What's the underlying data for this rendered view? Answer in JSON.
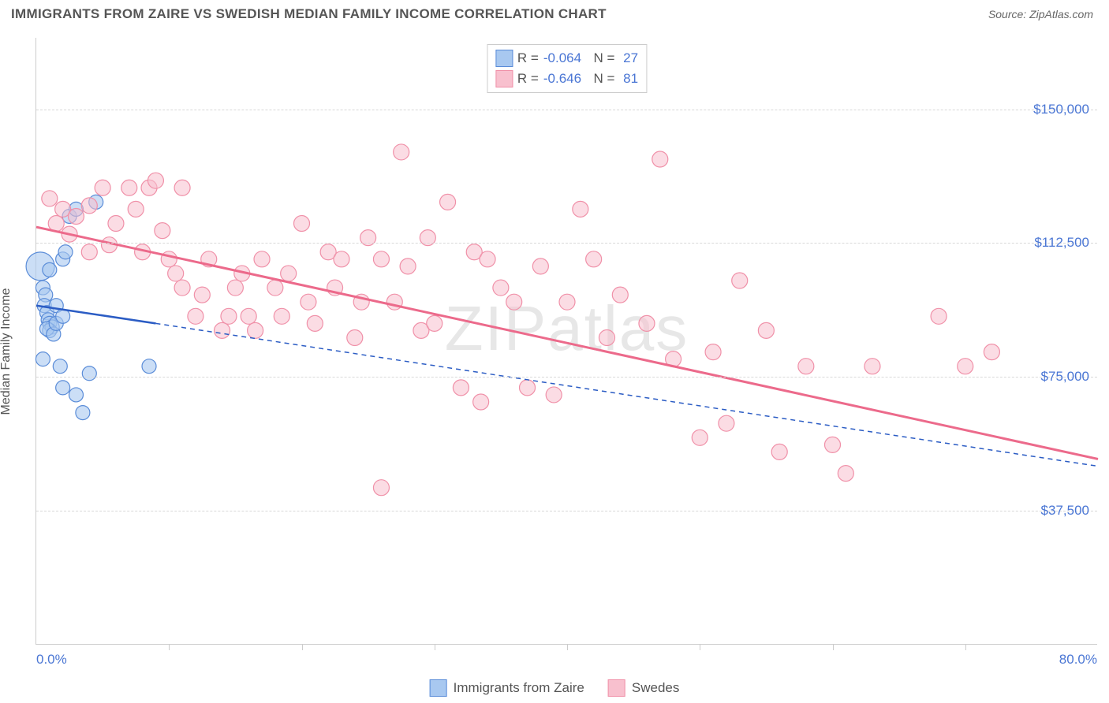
{
  "header": {
    "title": "IMMIGRANTS FROM ZAIRE VS SWEDISH MEDIAN FAMILY INCOME CORRELATION CHART",
    "source": "Source: ZipAtlas.com"
  },
  "chart": {
    "type": "scatter",
    "watermark": "ZIPatlas",
    "ylabel": "Median Family Income",
    "background_color": "#ffffff",
    "grid_color": "#d8d8d8",
    "axis_color": "#cccccc",
    "text_color": "#555555",
    "value_color": "#4a76d4",
    "xlim": [
      0,
      80
    ],
    "ylim": [
      0,
      170000
    ],
    "yticks": [
      {
        "v": 37500,
        "label": "$37,500"
      },
      {
        "v": 75000,
        "label": "$75,000"
      },
      {
        "v": 112500,
        "label": "$112,500"
      },
      {
        "v": 150000,
        "label": "$150,000"
      }
    ],
    "xtick_positions": [
      10,
      20,
      30,
      40,
      50,
      60,
      70
    ],
    "xtick_labels": {
      "min": "0.0%",
      "max": "80.0%"
    },
    "legend_top": [
      {
        "fill": "#a8c8f0",
        "stroke": "#5a8cd8",
        "R": "-0.064",
        "N": "27"
      },
      {
        "fill": "#f8c0ce",
        "stroke": "#f090a8",
        "R": "-0.646",
        "N": "81"
      }
    ],
    "legend_bottom": [
      {
        "fill": "#a8c8f0",
        "stroke": "#5a8cd8",
        "label": "Immigrants from Zaire"
      },
      {
        "fill": "#f8c0ce",
        "stroke": "#f090a8",
        "label": "Swedes"
      }
    ],
    "series": [
      {
        "name": "zaire",
        "fill": "#a8c8f0",
        "stroke": "#5a8cd8",
        "fill_opacity": 0.6,
        "radius": 9,
        "trend": {
          "x1": 0,
          "y1": 95000,
          "x2": 9,
          "y2": 90000,
          "color": "#2b5cc4",
          "width": 2.5,
          "dash": "none",
          "ext_x2": 80,
          "ext_y2": 50000,
          "ext_dash": "6,5"
        },
        "points": [
          {
            "x": 0.3,
            "y": 106000,
            "r": 18
          },
          {
            "x": 0.5,
            "y": 100000
          },
          {
            "x": 0.7,
            "y": 98000
          },
          {
            "x": 0.6,
            "y": 95000
          },
          {
            "x": 0.8,
            "y": 93000
          },
          {
            "x": 0.9,
            "y": 91000
          },
          {
            "x": 1.0,
            "y": 90000
          },
          {
            "x": 1.2,
            "y": 89000
          },
          {
            "x": 1.0,
            "y": 88000
          },
          {
            "x": 0.8,
            "y": 88500
          },
          {
            "x": 1.3,
            "y": 87000
          },
          {
            "x": 1.5,
            "y": 90000
          },
          {
            "x": 1.0,
            "y": 105000
          },
          {
            "x": 2.0,
            "y": 108000
          },
          {
            "x": 2.2,
            "y": 110000
          },
          {
            "x": 2.5,
            "y": 120000
          },
          {
            "x": 3.0,
            "y": 122000
          },
          {
            "x": 4.5,
            "y": 124000
          },
          {
            "x": 0.5,
            "y": 80000
          },
          {
            "x": 1.8,
            "y": 78000
          },
          {
            "x": 2.0,
            "y": 72000
          },
          {
            "x": 3.0,
            "y": 70000
          },
          {
            "x": 3.5,
            "y": 65000
          },
          {
            "x": 4.0,
            "y": 76000
          },
          {
            "x": 8.5,
            "y": 78000
          },
          {
            "x": 1.5,
            "y": 95000
          },
          {
            "x": 2.0,
            "y": 92000
          }
        ]
      },
      {
        "name": "swedes",
        "fill": "#f8c0ce",
        "stroke": "#f090a8",
        "fill_opacity": 0.55,
        "radius": 10,
        "trend": {
          "x1": 0,
          "y1": 117000,
          "x2": 80,
          "y2": 52000,
          "color": "#ec6a8b",
          "width": 3,
          "dash": "none"
        },
        "points": [
          {
            "x": 1,
            "y": 125000
          },
          {
            "x": 1.5,
            "y": 118000
          },
          {
            "x": 2,
            "y": 122000
          },
          {
            "x": 2.5,
            "y": 115000
          },
          {
            "x": 3,
            "y": 120000
          },
          {
            "x": 4,
            "y": 110000
          },
          {
            "x": 4,
            "y": 123000
          },
          {
            "x": 5,
            "y": 128000
          },
          {
            "x": 5.5,
            "y": 112000
          },
          {
            "x": 6,
            "y": 118000
          },
          {
            "x": 7,
            "y": 128000
          },
          {
            "x": 7.5,
            "y": 122000
          },
          {
            "x": 8,
            "y": 110000
          },
          {
            "x": 8.5,
            "y": 128000
          },
          {
            "x": 9,
            "y": 130000
          },
          {
            "x": 9.5,
            "y": 116000
          },
          {
            "x": 10,
            "y": 108000
          },
          {
            "x": 10.5,
            "y": 104000
          },
          {
            "x": 11,
            "y": 100000
          },
          {
            "x": 11,
            "y": 128000
          },
          {
            "x": 12,
            "y": 92000
          },
          {
            "x": 12.5,
            "y": 98000
          },
          {
            "x": 13,
            "y": 108000
          },
          {
            "x": 14,
            "y": 88000
          },
          {
            "x": 14.5,
            "y": 92000
          },
          {
            "x": 15,
            "y": 100000
          },
          {
            "x": 15.5,
            "y": 104000
          },
          {
            "x": 16,
            "y": 92000
          },
          {
            "x": 16.5,
            "y": 88000
          },
          {
            "x": 17,
            "y": 108000
          },
          {
            "x": 18,
            "y": 100000
          },
          {
            "x": 18.5,
            "y": 92000
          },
          {
            "x": 19,
            "y": 104000
          },
          {
            "x": 20,
            "y": 118000
          },
          {
            "x": 20.5,
            "y": 96000
          },
          {
            "x": 21,
            "y": 90000
          },
          {
            "x": 22,
            "y": 110000
          },
          {
            "x": 22.5,
            "y": 100000
          },
          {
            "x": 23,
            "y": 108000
          },
          {
            "x": 24,
            "y": 86000
          },
          {
            "x": 24.5,
            "y": 96000
          },
          {
            "x": 25,
            "y": 114000
          },
          {
            "x": 26,
            "y": 108000
          },
          {
            "x": 26,
            "y": 44000
          },
          {
            "x": 27,
            "y": 96000
          },
          {
            "x": 27.5,
            "y": 138000
          },
          {
            "x": 28,
            "y": 106000
          },
          {
            "x": 29,
            "y": 88000
          },
          {
            "x": 29.5,
            "y": 114000
          },
          {
            "x": 30,
            "y": 90000
          },
          {
            "x": 31,
            "y": 124000
          },
          {
            "x": 32,
            "y": 72000
          },
          {
            "x": 33,
            "y": 110000
          },
          {
            "x": 33.5,
            "y": 68000
          },
          {
            "x": 34,
            "y": 108000
          },
          {
            "x": 35,
            "y": 100000
          },
          {
            "x": 36,
            "y": 96000
          },
          {
            "x": 37,
            "y": 72000
          },
          {
            "x": 38,
            "y": 106000
          },
          {
            "x": 39,
            "y": 70000
          },
          {
            "x": 40,
            "y": 96000
          },
          {
            "x": 41,
            "y": 122000
          },
          {
            "x": 42,
            "y": 108000
          },
          {
            "x": 43,
            "y": 86000
          },
          {
            "x": 44,
            "y": 98000
          },
          {
            "x": 46,
            "y": 90000
          },
          {
            "x": 47,
            "y": 136000
          },
          {
            "x": 48,
            "y": 80000
          },
          {
            "x": 50,
            "y": 58000
          },
          {
            "x": 51,
            "y": 82000
          },
          {
            "x": 52,
            "y": 62000
          },
          {
            "x": 53,
            "y": 102000
          },
          {
            "x": 55,
            "y": 88000
          },
          {
            "x": 56,
            "y": 54000
          },
          {
            "x": 58,
            "y": 78000
          },
          {
            "x": 60,
            "y": 56000
          },
          {
            "x": 61,
            "y": 48000
          },
          {
            "x": 63,
            "y": 78000
          },
          {
            "x": 68,
            "y": 92000
          },
          {
            "x": 70,
            "y": 78000
          },
          {
            "x": 72,
            "y": 82000
          }
        ]
      }
    ]
  }
}
